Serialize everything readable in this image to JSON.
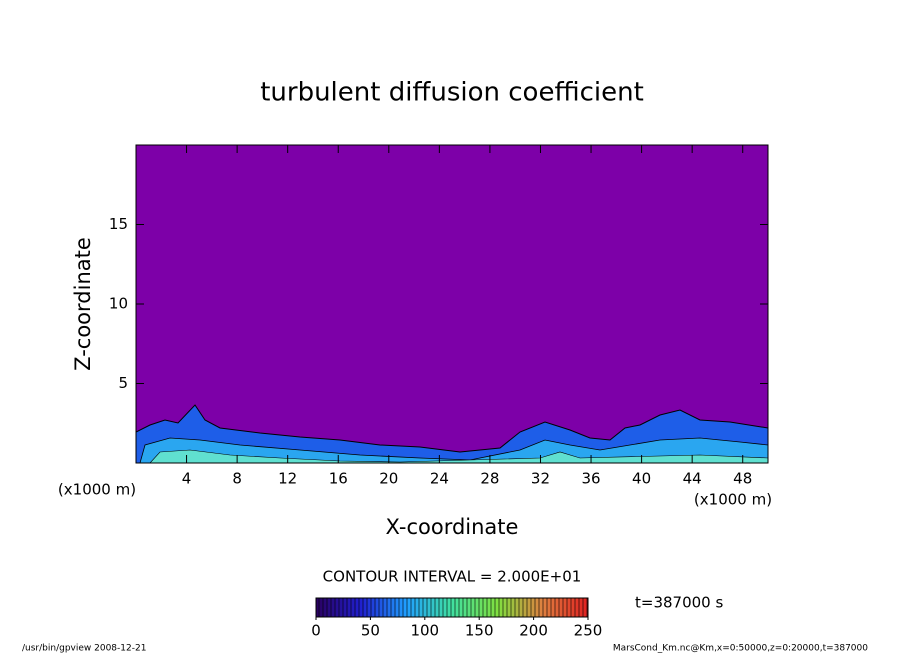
{
  "chart_data": {
    "type": "contour",
    "title": "turbulent diffusion coefficient",
    "x_label": "X-coordinate",
    "y_label": "Z-coordinate",
    "x_unit": "(x1000 m)",
    "y_unit": "(x1000 m)",
    "xlim": [
      0,
      50
    ],
    "ylim": [
      0,
      20
    ],
    "xticks": [
      4,
      8,
      12,
      16,
      20,
      24,
      28,
      32,
      36,
      40,
      44,
      48
    ],
    "yticks": [
      5,
      10,
      15
    ],
    "background_color": "#7d00a8",
    "contour_interval": "CONTOUR INTERVAL = 2.000E+01",
    "time_label": "t=387000 s",
    "colorbar": {
      "range": [
        0,
        250
      ],
      "ticks": [
        0,
        50,
        100,
        150,
        200,
        250
      ],
      "colors": [
        "#2a0060",
        "#2020d0",
        "#20a0ff",
        "#40e0a0",
        "#80e040",
        "#e08040",
        "#e02020"
      ]
    },
    "footer_left": "/usr/bin/gpview  2008-12-21",
    "footer_right": "MarsCond_Km.nc@Km,x=0:50000,z=0:20000,t=387000"
  }
}
